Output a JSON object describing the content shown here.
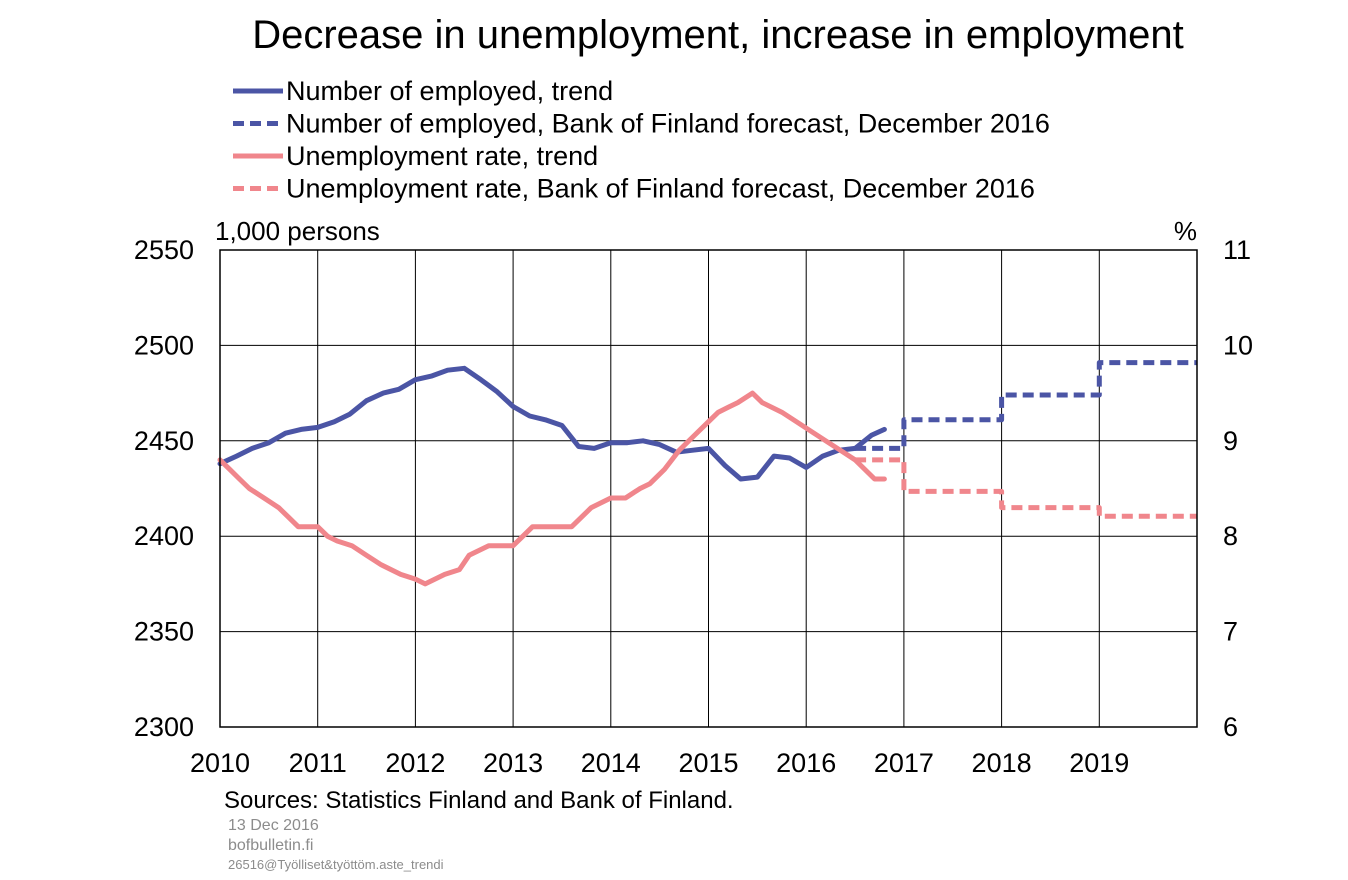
{
  "chart_data": {
    "type": "line",
    "title": "Decrease in unemployment, increase in employment",
    "y_left_unit": "1,000 persons",
    "y_right_unit": "%",
    "y_left_range": [
      2300,
      2550
    ],
    "y_left_ticks": [
      "2300",
      "2350",
      "2400",
      "2450",
      "2500",
      "2550"
    ],
    "y_right_range": [
      6,
      11
    ],
    "y_right_ticks": [
      "6",
      "7",
      "8",
      "9",
      "10",
      "11"
    ],
    "x_range": [
      2010,
      2020
    ],
    "x_ticks": [
      "2010",
      "2011",
      "2012",
      "2013",
      "2014",
      "2015",
      "2016",
      "2017",
      "2018",
      "2019"
    ],
    "grid": true,
    "legend_position": "top",
    "series": [
      {
        "name": "Number of employed, trend",
        "axis": "left",
        "style": "solid",
        "color": "#4b55a5",
        "points": [
          [
            2010.0,
            2438
          ],
          [
            2010.17,
            2442
          ],
          [
            2010.33,
            2446
          ],
          [
            2010.5,
            2449
          ],
          [
            2010.67,
            2454
          ],
          [
            2010.83,
            2456
          ],
          [
            2011.0,
            2457
          ],
          [
            2011.17,
            2460
          ],
          [
            2011.33,
            2464
          ],
          [
            2011.5,
            2471
          ],
          [
            2011.67,
            2475
          ],
          [
            2011.83,
            2477
          ],
          [
            2012.0,
            2482
          ],
          [
            2012.17,
            2484
          ],
          [
            2012.33,
            2487
          ],
          [
            2012.5,
            2488
          ],
          [
            2012.67,
            2482
          ],
          [
            2012.83,
            2476
          ],
          [
            2013.0,
            2468
          ],
          [
            2013.17,
            2463
          ],
          [
            2013.33,
            2461
          ],
          [
            2013.5,
            2458
          ],
          [
            2013.67,
            2447
          ],
          [
            2013.83,
            2446
          ],
          [
            2014.0,
            2449
          ],
          [
            2014.17,
            2449
          ],
          [
            2014.33,
            2450
          ],
          [
            2014.5,
            2448
          ],
          [
            2014.67,
            2444
          ],
          [
            2014.83,
            2445
          ],
          [
            2015.0,
            2446
          ],
          [
            2015.17,
            2437
          ],
          [
            2015.33,
            2430
          ],
          [
            2015.5,
            2431
          ],
          [
            2015.67,
            2442
          ],
          [
            2015.83,
            2441
          ],
          [
            2016.0,
            2436
          ],
          [
            2016.17,
            2442
          ],
          [
            2016.33,
            2445
          ],
          [
            2016.5,
            2446
          ],
          [
            2016.67,
            2453
          ],
          [
            2016.8,
            2456
          ]
        ]
      },
      {
        "name": "Number of employed, Bank of Finland forecast, December 2016",
        "axis": "left",
        "style": "dashed",
        "color": "#4b55a5",
        "points": [
          [
            2016.5,
            2446
          ],
          [
            2017.0,
            2446
          ],
          [
            2017.0,
            2461
          ],
          [
            2018.0,
            2461
          ],
          [
            2018.0,
            2474
          ],
          [
            2019.0,
            2474
          ],
          [
            2019.0,
            2491
          ],
          [
            2020.0,
            2491
          ]
        ]
      },
      {
        "name": "Unemployment rate, trend",
        "axis": "right",
        "style": "solid",
        "color": "#f0868c",
        "points": [
          [
            2010.0,
            8.8
          ],
          [
            2010.1,
            8.7
          ],
          [
            2010.2,
            8.6
          ],
          [
            2010.3,
            8.5
          ],
          [
            2010.45,
            8.4
          ],
          [
            2010.6,
            8.3
          ],
          [
            2010.7,
            8.2
          ],
          [
            2010.8,
            8.1
          ],
          [
            2011.0,
            8.1
          ],
          [
            2011.1,
            8.0
          ],
          [
            2011.2,
            7.95
          ],
          [
            2011.35,
            7.9
          ],
          [
            2011.5,
            7.8
          ],
          [
            2011.65,
            7.7
          ],
          [
            2011.85,
            7.6
          ],
          [
            2012.0,
            7.55
          ],
          [
            2012.1,
            7.5
          ],
          [
            2012.3,
            7.6
          ],
          [
            2012.45,
            7.65
          ],
          [
            2012.55,
            7.8
          ],
          [
            2012.75,
            7.9
          ],
          [
            2013.0,
            7.9
          ],
          [
            2013.1,
            8.0
          ],
          [
            2013.2,
            8.1
          ],
          [
            2013.6,
            8.1
          ],
          [
            2013.8,
            8.3
          ],
          [
            2014.0,
            8.4
          ],
          [
            2014.15,
            8.4
          ],
          [
            2014.3,
            8.5
          ],
          [
            2014.4,
            8.55
          ],
          [
            2014.55,
            8.7
          ],
          [
            2014.7,
            8.9
          ],
          [
            2014.85,
            9.05
          ],
          [
            2015.0,
            9.2
          ],
          [
            2015.1,
            9.3
          ],
          [
            2015.2,
            9.35
          ],
          [
            2015.3,
            9.4
          ],
          [
            2015.45,
            9.5
          ],
          [
            2015.55,
            9.4
          ],
          [
            2015.75,
            9.3
          ],
          [
            2015.9,
            9.2
          ],
          [
            2016.05,
            9.1
          ],
          [
            2016.2,
            9.0
          ],
          [
            2016.35,
            8.9
          ],
          [
            2016.5,
            8.8
          ],
          [
            2016.6,
            8.7
          ],
          [
            2016.7,
            8.6
          ],
          [
            2016.8,
            8.6
          ]
        ]
      },
      {
        "name": "Unemployment rate, Bank of Finland forecast, December 2016",
        "axis": "right",
        "style": "dashed",
        "color": "#f0868c",
        "points": [
          [
            2016.5,
            8.8
          ],
          [
            2017.0,
            8.8
          ],
          [
            2017.0,
            8.47
          ],
          [
            2018.0,
            8.47
          ],
          [
            2018.0,
            8.3
          ],
          [
            2019.0,
            8.3
          ],
          [
            2019.0,
            8.21
          ],
          [
            2020.0,
            8.21
          ]
        ]
      }
    ]
  },
  "footer": {
    "sources": "Sources: Statistics Finland and Bank of Finland.",
    "date": "13 Dec 2016",
    "site": "bofbulletin.fi",
    "file_id": "26516@Työlliset&työttöm.aste_trendi"
  }
}
